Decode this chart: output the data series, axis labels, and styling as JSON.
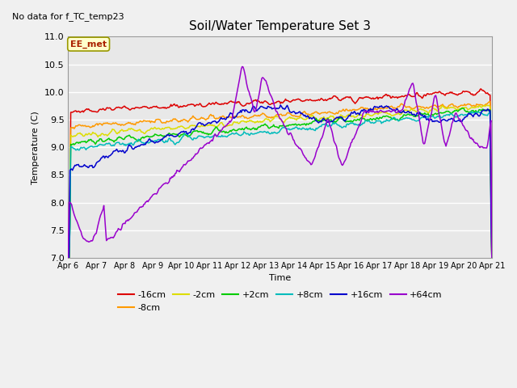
{
  "title": "Soil/Water Temperature Set 3",
  "xlabel": "Time",
  "ylabel": "Temperature (C)",
  "ylim": [
    7.0,
    11.0
  ],
  "yticks": [
    7.0,
    7.5,
    8.0,
    8.5,
    9.0,
    9.5,
    10.0,
    10.5,
    11.0
  ],
  "xtick_labels": [
    "Apr 6",
    "Apr 7",
    "Apr 8",
    "Apr 9",
    "Apr 10",
    "Apr 11",
    "Apr 12",
    "Apr 13",
    "Apr 14",
    "Apr 15",
    "Apr 16",
    "Apr 17",
    "Apr 18",
    "Apr 19",
    "Apr 20",
    "Apr 21"
  ],
  "annotation_text": "No data for f_TC_temp23",
  "legend_box_text": "EE_met",
  "series_labels": [
    "-16cm",
    "-8cm",
    "-2cm",
    "+2cm",
    "+8cm",
    "+16cm",
    "+64cm"
  ],
  "series_colors": [
    "#dd0000",
    "#ff9900",
    "#dddd00",
    "#00cc00",
    "#00bbbb",
    "#0000cc",
    "#9900cc"
  ],
  "background_color": "#e8e8e8",
  "plot_bg_color": "#e8e8e8",
  "grid_color": "#ffffff",
  "n_points": 500,
  "figwidth": 6.4,
  "figheight": 4.8,
  "dpi": 100
}
